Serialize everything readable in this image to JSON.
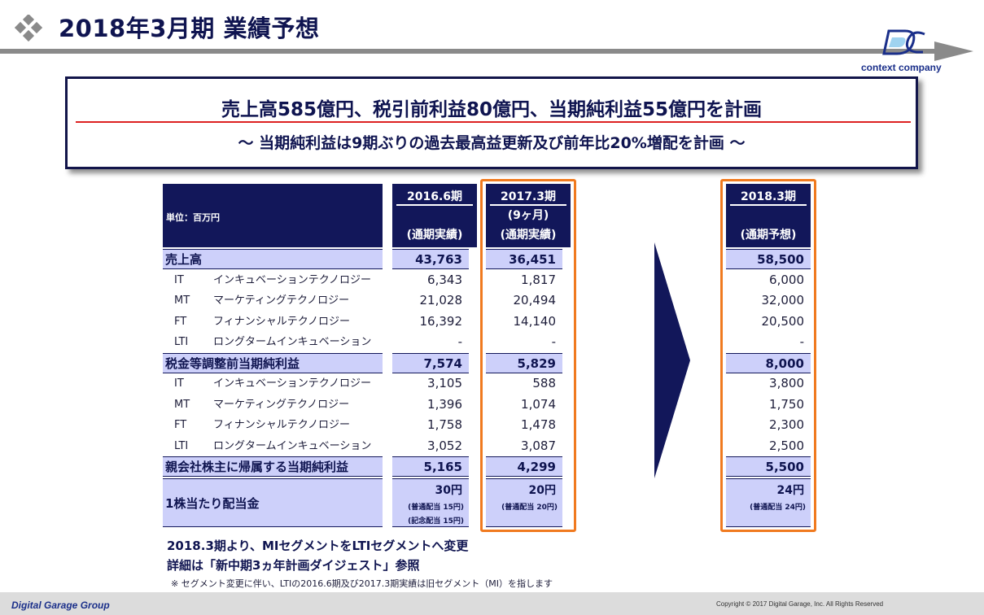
{
  "header": {
    "title": "2018年3月期 業績予想",
    "logo_text": "context company"
  },
  "headline": {
    "main": "売上高585億円、税引前利益80億円、当期純利益55億円を計画",
    "sub": "～ 当期純利益は9期ぶりの過去最高益更新及び前年比20%増配を計画 ～"
  },
  "table": {
    "unit_label": "単位：百万円",
    "columns": [
      {
        "year": "2016.6期",
        "months": "",
        "basis": "(通期実績)"
      },
      {
        "year": "2017.3期",
        "months": "(9ヶ月)",
        "basis": "(通期実績)"
      },
      {
        "year": "2018.3期",
        "months": "",
        "basis": "(通期予想)"
      }
    ],
    "rows": [
      {
        "type": "main",
        "label": "売上高",
        "values": [
          "43,763",
          "36,451",
          "58,500"
        ]
      },
      {
        "type": "sub",
        "code": "IT",
        "name": "インキュベーションテクノロジー",
        "values": [
          "6,343",
          "1,817",
          "6,000"
        ]
      },
      {
        "type": "sub",
        "code": "MT",
        "name": "マーケティングテクノロジー",
        "values": [
          "21,028",
          "20,494",
          "32,000"
        ]
      },
      {
        "type": "sub",
        "code": "FT",
        "name": "フィナンシャルテクノロジー",
        "values": [
          "16,392",
          "14,140",
          "20,500"
        ]
      },
      {
        "type": "sub",
        "code": "LTI",
        "name": "ロングタームインキュベーション",
        "values": [
          "-",
          "-",
          "-"
        ]
      },
      {
        "type": "main",
        "label": "税金等調整前当期純利益",
        "values": [
          "7,574",
          "5,829",
          "8,000"
        ]
      },
      {
        "type": "sub",
        "code": "IT",
        "name": "インキュベーションテクノロジー",
        "values": [
          "3,105",
          "588",
          "3,800"
        ]
      },
      {
        "type": "sub",
        "code": "MT",
        "name": "マーケティングテクノロジー",
        "values": [
          "1,396",
          "1,074",
          "1,750"
        ]
      },
      {
        "type": "sub",
        "code": "FT",
        "name": "フィナンシャルテクノロジー",
        "values": [
          "1,758",
          "1,478",
          "2,300"
        ]
      },
      {
        "type": "sub",
        "code": "LTI",
        "name": "ロングタームインキュベーション",
        "values": [
          "3,052",
          "3,087",
          "2,500"
        ]
      },
      {
        "type": "main",
        "label": "親会社株主に帰属する当期純利益",
        "values": [
          "5,165",
          "4,299",
          "5,500"
        ]
      }
    ],
    "dividend": {
      "label": "1株当たり配当金",
      "values": [
        {
          "amount": "30円",
          "notes": [
            "(普通配当 15円)",
            "(記念配当 15円)"
          ]
        },
        {
          "amount": "20円",
          "notes": [
            "(普通配当 20円)"
          ]
        },
        {
          "amount": "24円",
          "notes": [
            "(普通配当 24円)"
          ]
        }
      ]
    }
  },
  "notes": {
    "line1": "2018.3期より、MIセグメントをLTIセグメントへ変更",
    "line2": "詳細は「新中期3ヵ年計画ダイジェスト」参照",
    "line3": "※ セグメント変更に伴い、LTIの2016.6期及び2017.3期実績は旧セグメント（MI）を指します"
  },
  "footer": {
    "company": "Digital Garage Group",
    "copyright": "Copyright © 2017 Digital Garage, Inc. All Rights Reserved"
  },
  "colors": {
    "navy": "#12175a",
    "highlight_row": "#cdd0fa",
    "orange": "#f07a1f",
    "header_gray": "#8a8a8a"
  }
}
